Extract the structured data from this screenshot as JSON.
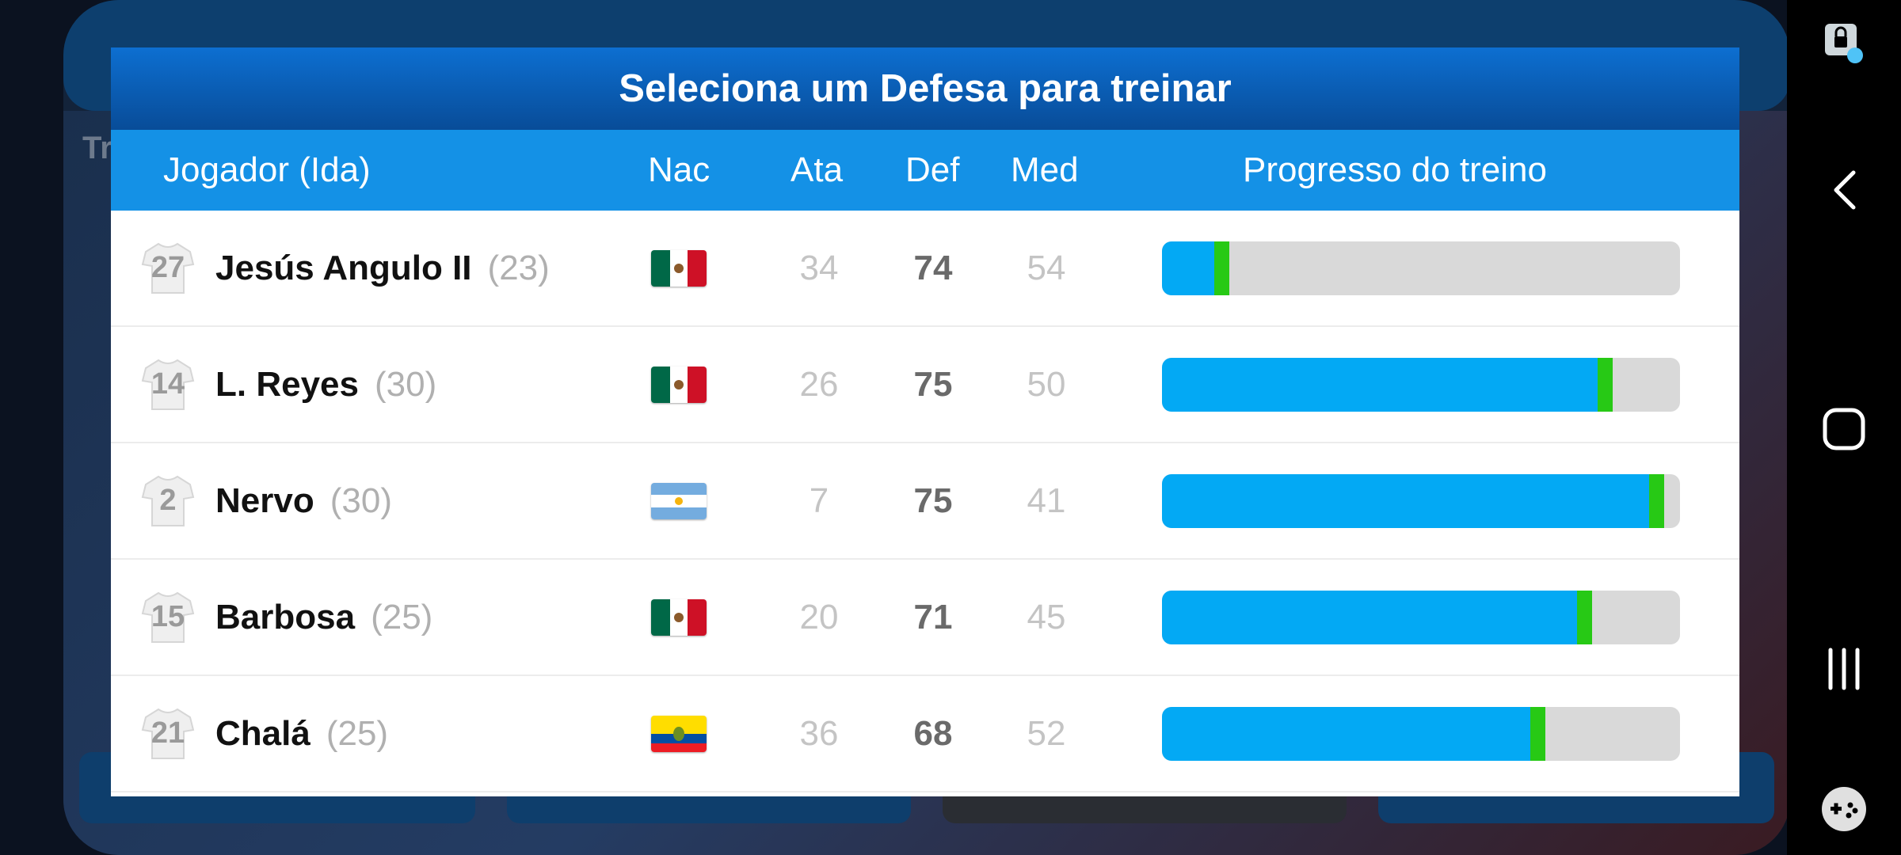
{
  "background": {
    "side_text": "Tr"
  },
  "modal": {
    "title": "Seleciona um Defesa para treinar",
    "columns": {
      "player": "Jogador (Ida)",
      "nationality": "Nac",
      "attack": "Ata",
      "defense": "Def",
      "midfield": "Med",
      "progress": "Progresso do treino"
    },
    "players": [
      {
        "number": "27",
        "name": "Jesús Angulo II",
        "age": "(23)",
        "flag": "mexico",
        "ata": "34",
        "def": "74",
        "med": "54",
        "progress": 0.13
      },
      {
        "number": "14",
        "name": "L. Reyes",
        "age": "(30)",
        "flag": "mexico",
        "ata": "26",
        "def": "75",
        "med": "50",
        "progress": 0.87
      },
      {
        "number": "2",
        "name": "Nervo",
        "age": "(30)",
        "flag": "argentina",
        "ata": "7",
        "def": "75",
        "med": "41",
        "progress": 0.97
      },
      {
        "number": "15",
        "name": "Barbosa",
        "age": "(25)",
        "flag": "mexico",
        "ata": "20",
        "def": "71",
        "med": "45",
        "progress": 0.83
      },
      {
        "number": "21",
        "name": "Chalá",
        "age": "(25)",
        "flag": "ecuador",
        "ata": "36",
        "def": "68",
        "med": "52",
        "progress": 0.74
      }
    ]
  },
  "colors": {
    "header_gradient_top": "#0d6fd1",
    "header_gradient_bottom": "#084c98",
    "column_header": "#1491e6",
    "progress_fill": "#03a9f4",
    "progress_tip": "#27c915",
    "progress_track": "#d9d9d9"
  },
  "navbar": {
    "icons": [
      "touch-lock-icon",
      "back-icon",
      "home-icon",
      "recents-icon",
      "game-controller-icon"
    ]
  }
}
